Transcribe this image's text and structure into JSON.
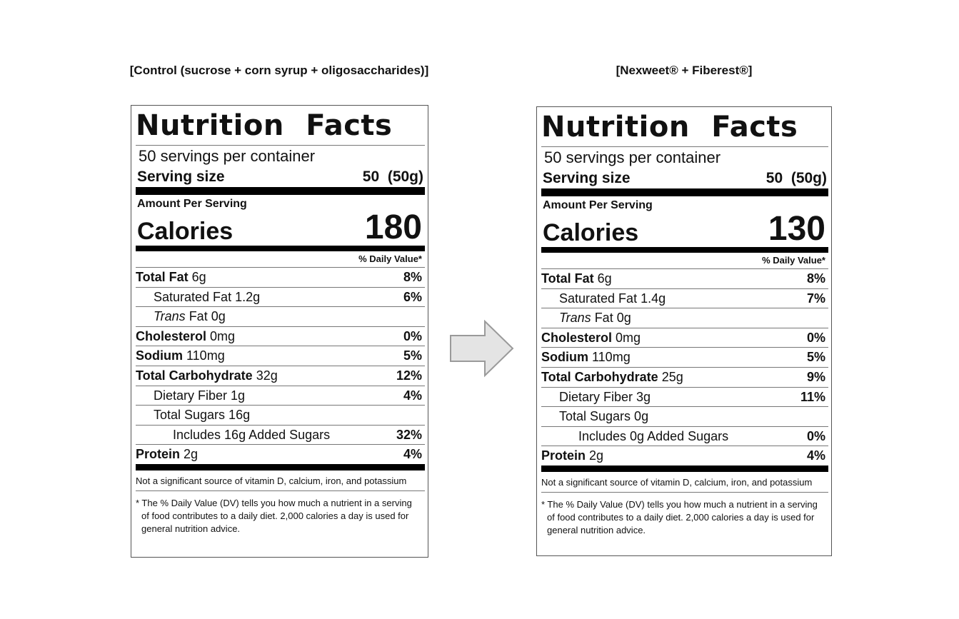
{
  "labels": [
    {
      "caption": "[Control (sucrose + corn syrup + oligosaccharides)]",
      "title": "Nutrition Facts",
      "servings_per_container": "50 servings per container",
      "serving_size_label": "Serving size",
      "serving_size_value": "50  (50g)",
      "amount_per_serving": "Amount Per Serving",
      "calories_label": "Calories",
      "calories_value": "180",
      "daily_value_header": "% Daily Value*",
      "rows": [
        {
          "name_bold": "Total Fat",
          "name_italic": "",
          "name_rest": " 6g",
          "pct": "8%"
        },
        {
          "name_bold": "",
          "name_italic": "",
          "name_rest": "Saturated Fat 1.2g",
          "pct": "6%"
        },
        {
          "name_bold": "",
          "name_italic": "Trans",
          "name_rest": " Fat 0g",
          "pct": ""
        },
        {
          "name_bold": "Cholesterol",
          "name_italic": "",
          "name_rest": " 0mg",
          "pct": "0%"
        },
        {
          "name_bold": "Sodium",
          "name_italic": "",
          "name_rest": " 110mg",
          "pct": "5%"
        },
        {
          "name_bold": "Total Carbohydrate",
          "name_italic": "",
          "name_rest": " 32g",
          "pct": "12%"
        },
        {
          "name_bold": "",
          "name_italic": "",
          "name_rest": "Dietary Fiber 1g",
          "pct": "4%"
        },
        {
          "name_bold": "",
          "name_italic": "",
          "name_rest": "Total Sugars 16g",
          "pct": ""
        },
        {
          "name_bold": "",
          "name_italic": "",
          "name_rest": "Includes 16g Added Sugars",
          "pct": "32%"
        },
        {
          "name_bold": "Protein",
          "name_italic": "",
          "name_rest": " 2g",
          "pct": "4%"
        }
      ],
      "note": "Not a significant source of vitamin D, calcium, iron, and potassium",
      "footnote": "* The % Daily Value (DV) tells you how much a nutrient in a serving of food contributes to a daily diet. 2,000 calories a day is used for general nutrition advice."
    },
    {
      "caption": "[Nexweet® + Fiberest®]",
      "title": "Nutrition Facts",
      "servings_per_container": "50 servings per container",
      "serving_size_label": "Serving size",
      "serving_size_value": "50  (50g)",
      "amount_per_serving": "Amount Per Serving",
      "calories_label": "Calories",
      "calories_value": "130",
      "daily_value_header": "% Daily Value*",
      "rows": [
        {
          "name_bold": "Total Fat",
          "name_italic": "",
          "name_rest": " 6g",
          "pct": "8%"
        },
        {
          "name_bold": "",
          "name_italic": "",
          "name_rest": "Saturated Fat 1.4g",
          "pct": "7%"
        },
        {
          "name_bold": "",
          "name_italic": "Trans",
          "name_rest": " Fat 0g",
          "pct": ""
        },
        {
          "name_bold": "Cholesterol",
          "name_italic": "",
          "name_rest": " 0mg",
          "pct": "0%"
        },
        {
          "name_bold": "Sodium",
          "name_italic": "",
          "name_rest": " 110mg",
          "pct": "5%"
        },
        {
          "name_bold": "Total Carbohydrate",
          "name_italic": "",
          "name_rest": " 25g",
          "pct": "9%"
        },
        {
          "name_bold": "",
          "name_italic": "",
          "name_rest": "Dietary Fiber 3g",
          "pct": "11%"
        },
        {
          "name_bold": "",
          "name_italic": "",
          "name_rest": "Total Sugars 0g",
          "pct": ""
        },
        {
          "name_bold": "",
          "name_italic": "",
          "name_rest": "Includes 0g Added Sugars",
          "pct": "0%"
        },
        {
          "name_bold": "Protein",
          "name_italic": "",
          "name_rest": " 2g",
          "pct": "4%"
        }
      ],
      "note": "Not a significant source of vitamin D, calcium, iron, and potassium",
      "footnote": "* The % Daily Value (DV) tells you how much a nutrient in a serving of food contributes to a daily diet. 2,000 calories a day is used for general nutrition advice."
    }
  ],
  "arrow": {
    "icon": "right-arrow-icon",
    "fill": "#e4e4e4",
    "stroke": "#9a9a9a"
  }
}
